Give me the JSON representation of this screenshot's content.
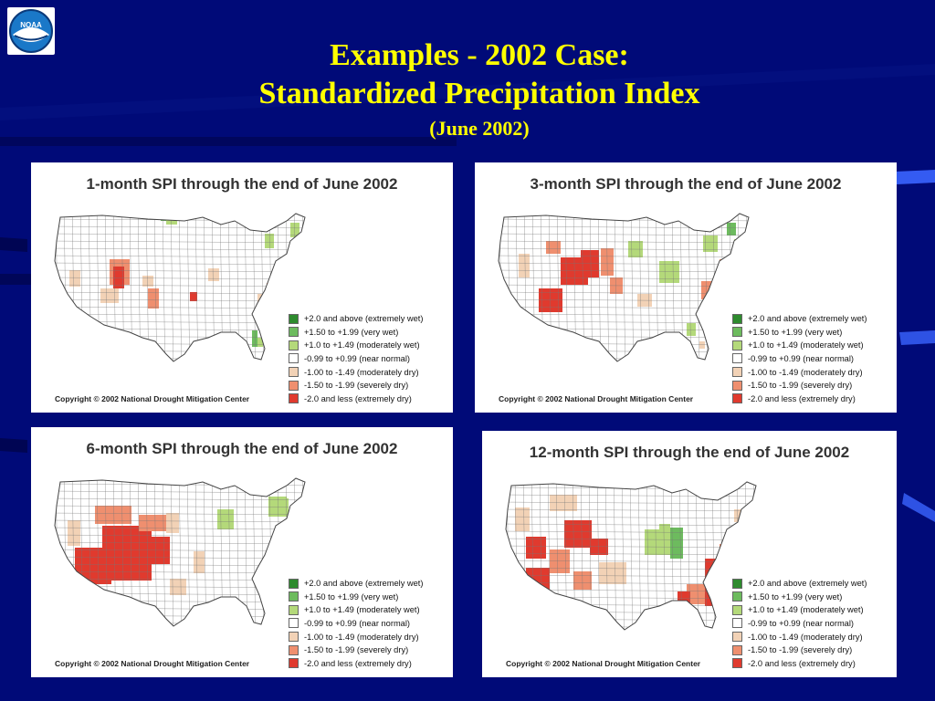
{
  "slide": {
    "title_line1": "Examples - 2002 Case:",
    "title_line2": "Standardized Precipitation Index",
    "title_line3": "(June 2002)",
    "logo_text": "NOAA"
  },
  "legend_colors": [
    "#2e8b2e",
    "#6dbb5e",
    "#b4d97a",
    "#ffffff",
    "#f2d2b6",
    "#ef8f6f",
    "#e03a2e"
  ],
  "legend_labels": [
    "+2.0 and above (extremely wet)",
    "+1.50 to +1.99 (very wet)",
    "+1.0 to +1.49 (moderately wet)",
    "-0.99 to +0.99 (near normal)",
    "-1.00 to -1.49 (moderately dry)",
    "-1.50 to -1.99 (severely dry)",
    "-2.0 and less (extremely dry)"
  ],
  "copyright": "Copyright © 2002 National Drought Mitigation Center",
  "maps": [
    {
      "title": "1-month SPI through the end of June 2002"
    },
    {
      "title": "3-month SPI through the end of June 2002"
    },
    {
      "title": "6-month SPI through the end of June 2002"
    },
    {
      "title": "12-month SPI through the end of June 2002"
    }
  ]
}
